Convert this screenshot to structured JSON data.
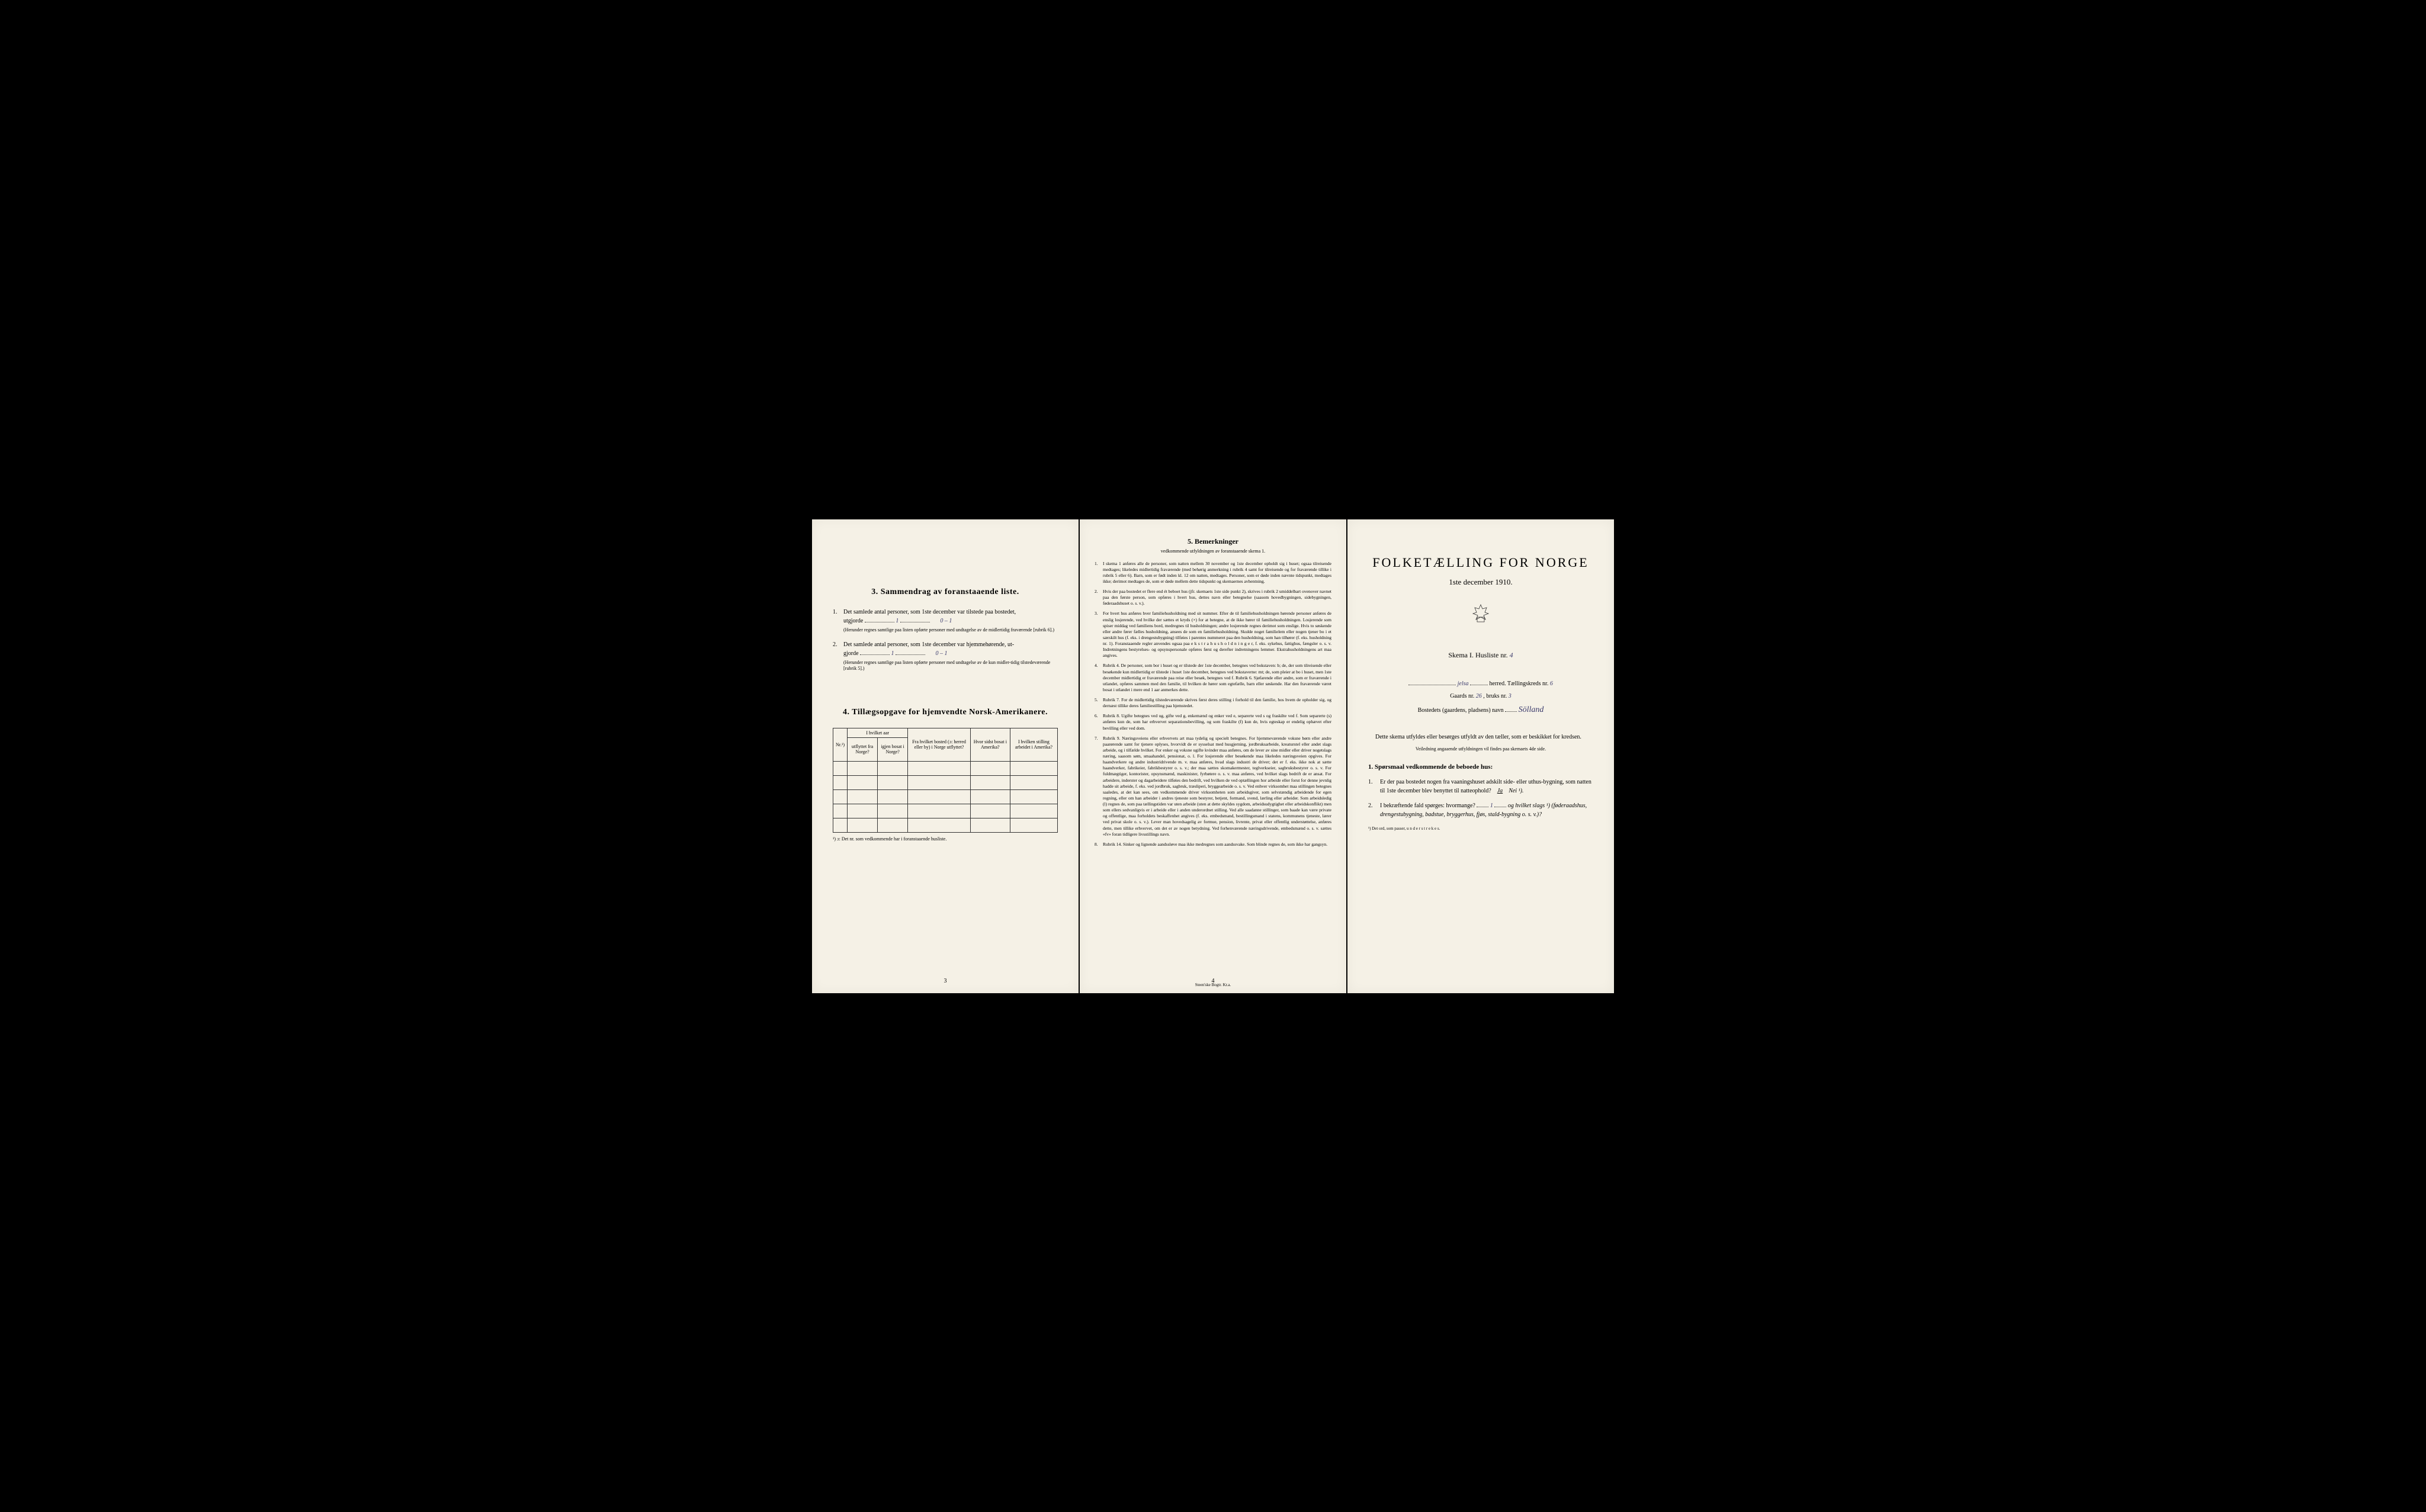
{
  "page3": {
    "section3_title": "3.   Sammendrag av foranstaaende liste.",
    "item1_num": "1.",
    "item1_text": "Det samlede antal personer, som 1ste december var tilstede paa bostedet,",
    "item1_label": "utgjorde",
    "item1_value": "1",
    "item1_extra": "0 – 1",
    "item1_note": "(Herunder regnes samtlige paa listen opførte personer med undtagelse av de midlertidig fraværende [rubrik 6].)",
    "item2_num": "2.",
    "item2_text": "Det samlede antal personer, som 1ste december var hjemmehørende, ut-",
    "item2_label": "gjorde",
    "item2_value": "1",
    "item2_extra": "0 – 1",
    "item2_note": "(Herunder regnes samtlige paa listen opførte personer med undtagelse av de kun midler-tidig tilstedeværende [rubrik 5].)",
    "section4_title": "4.  Tillægsopgave for hjemvendte Norsk-Amerikanere.",
    "table_header_nr": "Nr.¹)",
    "table_header_group1": "I hvilket aar",
    "table_header_col1": "utflyttet fra Norge?",
    "table_header_col2": "igjen bosat i Norge?",
    "table_header_col3": "Fra hvilket bosted (ɔ: herred eller by) i Norge utflyttet?",
    "table_header_col4": "Hvor sidst bosat i Amerika?",
    "table_header_col5": "I hvilken stilling arbeidet i Amerika?",
    "table_footnote": "¹) ɔ: Det nr. som vedkommende har i foranstaaende husliste.",
    "page_num": "3"
  },
  "page4": {
    "title": "5.   Bemerkninger",
    "subtitle": "vedkommende utfyldningen av foranstaaende skema 1.",
    "items": [
      {
        "num": "1.",
        "text": "I skema 1 anføres alle de personer, som natten mellem 30 november og 1ste december opholdt sig i huset; ogsaa tilreisende medtages; likeledes midlertidig fraværende (med behørig anmerkning i rubrik 4 samt for tilreisende og for fraværende tillike i rubrik 5 eller 6). Barn, som er født inden kl. 12 om natten, medtages. Personer, som er døde inden nævnte tidspunkt, medtages ikke; derimot medtages de, som er døde mellem dette tidspunkt og skemaernes avhentning."
      },
      {
        "num": "2.",
        "text": "Hvis der paa bostedet er flere end ét beboet hus (jfr. skemaets 1ste side punkt 2), skrives i rubrik 2 umiddelbart ovenover navnet paa den første person, som opføres i hvert hus, dettes navn eller betegnelse (saasom hovedbygningen, sidebygningen, føderaadshuset o. s. v.)."
      },
      {
        "num": "3.",
        "text": "For hvert hus anføres hver familiehusholdning med sit nummer. Efter de til familiehusholdningen hørende personer anføres de enslig losjerende, ved hvilke der sættes et kryds (×) for at betegne, at de ikke hører til familiehusholdningen. Losjerende som spiser middag ved familiens bord, medregnes til husholdningen; andre losjerende regnes derimot som enslige. Hvis to søskende eller andre fører fælles husholdning, ansees de som en familiehusholdning. Skulde noget familielem eller nogen tjener bo i et særskilt hus (f. eks. i drengestubygning) tilføies i parentes nummeret paa den husholdning, som han tilhører (f. eks. husholdning nr. 1).      Foranstaaende regler anvendes ogsaa paa e k s t r a h u s h o l d n i n g e r, f. eks. sykehus, fattighus, fængsler o. s. v. Indretningens bestyrelses- og opsynspersonale opføres først og derefter indretningens lemmer. Ekstrahusholdningens art maa angives."
      },
      {
        "num": "4.",
        "text": "Rubrik 4. De personer, som bor i huset og er tilstede der 1ste december, betegnes ved bokstaven: b; de, der som tilreisende eller besøkende kun midlertidig er tilstede i huset 1ste december, betegnes ved bokstaverne: mt; de, som pleier at bo i huset, men 1ste december midlertidig er fraværende paa reise eller besøk, betegnes ved f.      Rubrik 6. Sjøfarende eller andre, som er fraværende i utlandet, opføres sammen med den familie, til hvilken de hører som egtefælle, barn eller søskende.      Har den fraværende været bosat i utlandet i mere end 1 aar anmerkes dette."
      },
      {
        "num": "5.",
        "text": "Rubrik 7. For de midlertidig tilstedeværende skrives først deres stilling i forhold til den familie, hos hvem de opholder sig, og dernæst tillike deres familiestilling paa hjemstedet."
      },
      {
        "num": "6.",
        "text": "Rubrik 8. Ugifte betegnes ved ug, gifte ved g, enkemænd og enker ved e, separerte ved s og fraskilte ved f. Som separerte (s) anføres kun de, som har erhvervet separationsbevilling, og som fraskilte (f) kun de, hvis egteskap er endelig ophævet efter bevilling eller ved dom."
      },
      {
        "num": "7.",
        "text": "Rubrik 9. Næringsveiens eller erhvervets art maa tydelig og specielt betegnes.      For hjemmeværende voksne børn eller andre paarørende samt for tjenere oplyses, hvorvidt de er sysselsat med husgjerning, jordbruksarbeide, kreaturstel eller andet slags arbeide, og i tilfælde hvilket. For enker og voksne ugifte kvinder maa anføres, om de lever av sine midler eller driver nogetslags næring, saasom søm, smaahandel, pensionat, o. l.      For losjerende eller besøkende maa likeledes næringsveien opgives.      For haandverkere og andre industridrivende m. v. maa anføres, hvad slags industri de driver; det er f. eks. ikke nok at sætte haandverker, fabrikeier, fabrikbestyrer o. s. v.; der maa sættes skomakermester, teglverkseier, sagbruksbestyrer o. s. v.      For fuldmægtiger, kontorister, opsynsmænd, maskinister, fyrbøtere o. s. v. maa anføres, ved hvilket slags bedrift de er ansat.      For arbeidere, inderster og dagarbeidere tilføies den bedrift, ved hvilken de ved optællingen hor arbeide eller forut for denne jevnlig hadde sit arbeide, f. eks. ved jordbruk, sagbruk, træsliperi, bryggearbeide o. s. v.      Ved enhver virksomhet maa stillingen betegnes saaledes, at det kan sees, om vedkommende driver virksomheten som arbeidsgiver, som selvstændig arbeidende for egen regning, eller om han arbeider i andres tjeneste som bestyrer, betjent, formand, svend, lærling eller arbeider.      Som arbeidsledig (l) regnes de, som paa tællingstiden var uten arbeide (uten at dette skyldes sygdom, arbeidsudygtighet eller arbeidskonflikt) men som ellers sedvanligvis er i arbeide eller i anden underordnet stilling.      Ved alle saadanne stillinger, som baade kan være private og offentlige, maa forholdets beskaffenhet angives (f. eks. embedsmand, bestillingsmand i statens, kommunens tjeneste, lærer ved privat skole o. s. v.).      Lever man hovedsagelig av formue, pension, livrente, privat eller offentlig understøttelse, anføres dette, men tillike erhvervet, om det er av nogen betydning.      Ved forhenværende næringsdrivende, embedsmænd o. s. v. sættes «fv» foran tidligere livsstillings navn."
      },
      {
        "num": "8.",
        "text": "Rubrik 14. Sinker og lignende aandssløve maa ikke medregnes som aandssvake.      Som blinde regnes de, som ikke har gangsyn."
      }
    ],
    "page_num": "4",
    "footer_print": "Steen'ske Bogtr. Kr.a."
  },
  "page1": {
    "main_title": "FOLKETÆLLING FOR NORGE",
    "date_line": "1ste december 1910.",
    "skema_label": "Skema I.   Husliste nr.",
    "husliste_nr": "4",
    "herred_value": "jelsa",
    "herred_label": " herred.   Tællingskreds nr.",
    "kreds_nr": "6",
    "gaards_label": "Gaards nr.",
    "gaards_nr": "26",
    "bruks_label": ", bruks nr.",
    "bruks_nr": "3",
    "bosted_label": "Bostedets (gaardens, pladsens) navn",
    "bosted_value": "Sölland",
    "instruction": "Dette skema utfyldes eller besørges utfyldt av den tæller, som er beskikket for kredsen.",
    "instruction_small": "Veiledning angaaende utfyldningen vil findes paa skemaets 4de side.",
    "q_title": "1. Spørsmaal vedkommende de beboede hus:",
    "q1_num": "1.",
    "q1_text": "Er der paa bostedet nogen fra vaaningshuset adskilt side- eller uthus-bygning, som natten til 1ste december blev benyttet til natteophold?",
    "q1_ja": "Ja",
    "q1_nei": "Nei ¹).",
    "q2_num": "2.",
    "q2_text_a": "I bekræftende fald spørges: hvormange?",
    "q2_value": "1",
    "q2_text_b": "og hvilket slags ¹) (føderaadshus, drengestubygning, badstue, bryggerhus, fjøs, stald-bygning o. s. v.)?",
    "footnote": "¹) Det ord, som passer, u n d e r s t r e k e s."
  }
}
